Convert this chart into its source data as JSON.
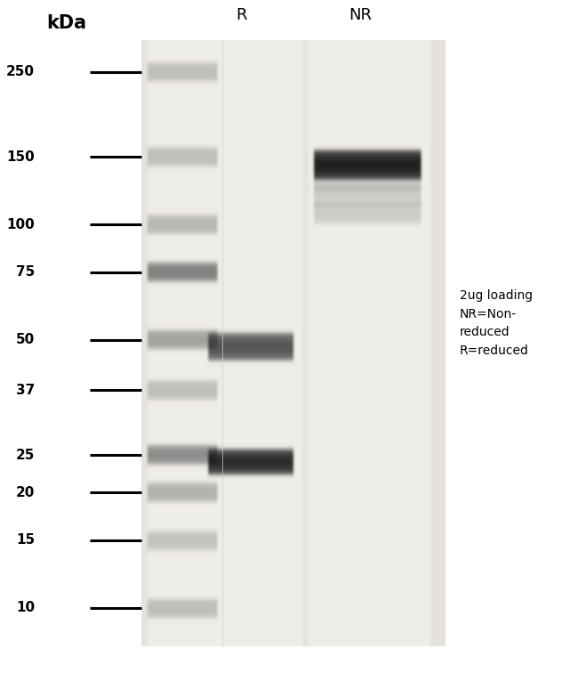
{
  "fig_bg": "#ffffff",
  "left_bg": "#ffffff",
  "gel_bg": "#e8e6e2",
  "kda_labels": [
    "250",
    "150",
    "100",
    "75",
    "50",
    "37",
    "25",
    "20",
    "15",
    "10"
  ],
  "kda_values": [
    250,
    150,
    100,
    75,
    50,
    37,
    25,
    20,
    15,
    10
  ],
  "col_labels": [
    "R",
    "NR"
  ],
  "annotation_text": "2ug loading\nNR=Non-\nreduced\nR=reduced",
  "axis_label": "kDa",
  "log_min": 0.9,
  "log_max": 2.48,
  "marker_bands": [
    250,
    150,
    100,
    75,
    50,
    37,
    25,
    20,
    15,
    10
  ],
  "marker_band_intensities": [
    0.22,
    0.22,
    0.25,
    0.5,
    0.35,
    0.22,
    0.45,
    0.28,
    0.2,
    0.22
  ],
  "R_bands": [
    {
      "kda": 48,
      "intensity": 0.7,
      "thickness": 0.045
    },
    {
      "kda": 24,
      "intensity": 0.9,
      "thickness": 0.04
    }
  ],
  "NR_bands": [
    {
      "kda": 143,
      "intensity": 0.95,
      "thickness": 0.048
    }
  ]
}
